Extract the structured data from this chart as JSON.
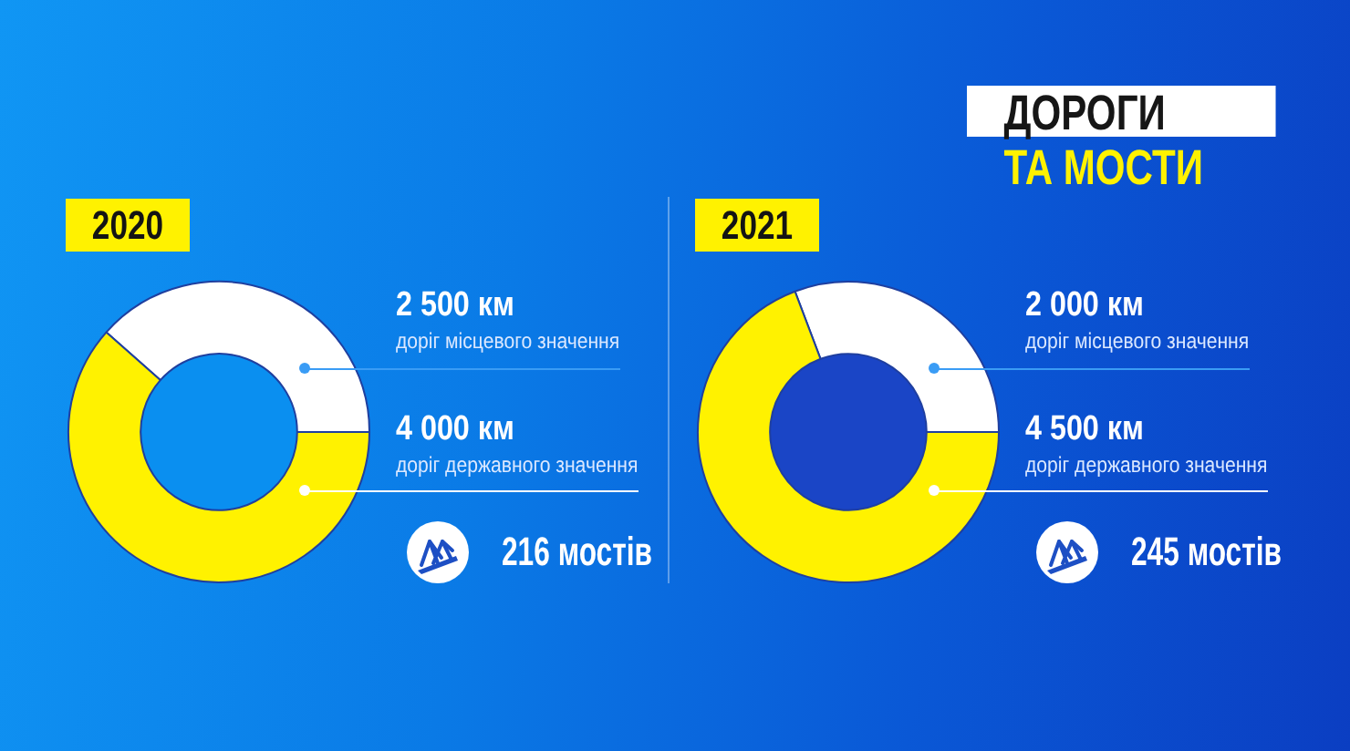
{
  "chart_data": [
    {
      "type": "donut",
      "subtitle": "2020",
      "categories": [
        "доріг місцевого значення",
        "доріг державного значення"
      ],
      "values": [
        2500,
        4000
      ],
      "value_labels": [
        "2 500 км",
        "4 000 км"
      ],
      "colors": [
        "#ffffff",
        "#fff200"
      ],
      "annotations": [
        "216 мостів"
      ]
    },
    {
      "type": "donut",
      "title": "ДОРОГИ\nТА МОСТИ",
      "subtitle": "2021",
      "categories": [
        "доріг місцевого значення",
        "доріг державного значення"
      ],
      "values": [
        2000,
        4500
      ],
      "value_labels": [
        "2 000 км",
        "4 500 км"
      ],
      "colors": [
        "#ffffff",
        "#fff200"
      ],
      "annotations": [
        "245 мостів"
      ]
    }
  ]
}
